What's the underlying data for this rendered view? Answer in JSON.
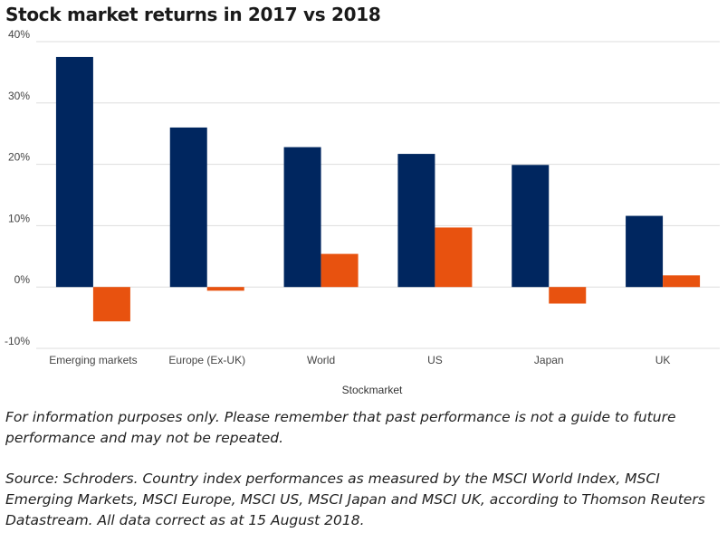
{
  "title": "Stock market returns in 2017 vs 2018",
  "chart_data": {
    "type": "bar",
    "categories": [
      "Emerging markets",
      "Europe (Ex-UK)",
      "World",
      "US",
      "Japan",
      "UK"
    ],
    "series": [
      {
        "values": [
          37.5,
          26.0,
          22.8,
          21.7,
          19.9,
          11.6
        ],
        "color": "#00265f"
      },
      {
        "values": [
          -5.6,
          -0.6,
          5.4,
          9.7,
          -2.7,
          1.9
        ],
        "color": "#e8520f"
      }
    ],
    "xlabel": "Stockmarket",
    "ylabel": "",
    "ylim": [
      -10,
      40
    ],
    "yticks": [
      -10,
      0,
      10,
      20,
      30,
      40
    ],
    "ytick_labels": [
      "-10%",
      "0%",
      "10%",
      "20%",
      "30%",
      "40%"
    ],
    "grid": true,
    "legend": "none"
  },
  "notes": {
    "disclaimer": "For information purposes only. Please remember that past performance is not a guide to future performance and may not be repeated.",
    "source": "Source: Schroders. Country index performances as measured by the MSCI World Index, MSCI Emerging Markets, MSCI Europe, MSCI US, MSCI Japan and MSCI UK, according to Thomson Reuters Datastream. All data correct as at 15 August 2018."
  }
}
